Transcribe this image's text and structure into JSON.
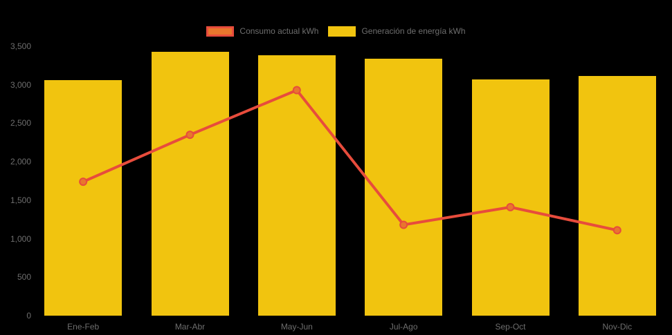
{
  "background_color": "#000000",
  "text_color": "#6e6e6e",
  "legend": {
    "position": "top"
  },
  "axes": {
    "y_tick_labels": [
      "0",
      "500",
      "1,000",
      "1,500",
      "2,000",
      "2,500",
      "3,000",
      "3,500"
    ],
    "y_tick_step": 500
  },
  "chart_data": {
    "type": "bar",
    "categories": [
      "Ene-Feb",
      "Mar-Abr",
      "May-Jun",
      "Jul-Ago",
      "Sep-Oct",
      "Nov-Dic"
    ],
    "series": [
      {
        "name": "Generación de energía kWh",
        "type": "bar",
        "color": "#f1c40f",
        "values": [
          3060,
          3430,
          3380,
          3340,
          3070,
          3110
        ]
      },
      {
        "name": "Consumo actual kWh",
        "type": "line",
        "color": "#e74c3c",
        "marker_color": "#e8762d",
        "values": [
          1740,
          2350,
          2930,
          1180,
          1410,
          1110
        ]
      }
    ],
    "title": "",
    "xlabel": "",
    "ylabel": "",
    "ylim": [
      0,
      3500
    ],
    "grid": false,
    "legend_position": "top"
  }
}
